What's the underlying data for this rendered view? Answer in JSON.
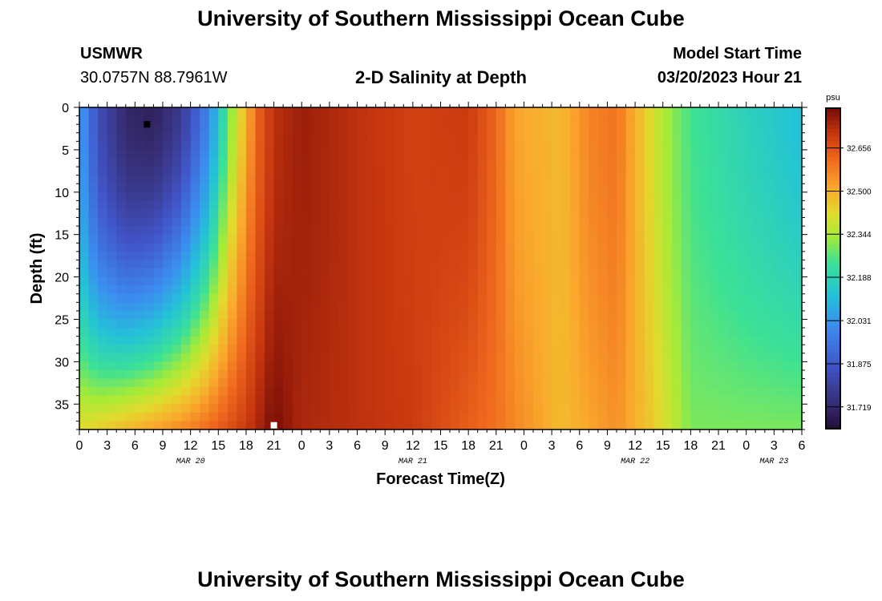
{
  "page": {
    "title": "University of Southern Mississippi Ocean Cube",
    "footer_title": "University of Southern Mississippi Ocean Cube",
    "station_id": "USMWR",
    "coordinates": "30.0757N  88.7961W",
    "subtitle": "2-D Salinity at Depth",
    "model_start_label": "Model Start Time",
    "model_start_value": "03/20/2023 Hour 21"
  },
  "chart_data": {
    "type": "heatmap",
    "title": "2-D Salinity at Depth",
    "xlabel": "Forecast Time(Z)",
    "ylabel": "Depth (ft)",
    "x_start_hour": 0,
    "x_end_hour": 78,
    "x_ticks": [
      "0",
      "3",
      "6",
      "9",
      "12",
      "15",
      "18",
      "21",
      "0",
      "3",
      "6",
      "9",
      "12",
      "15",
      "18",
      "21",
      "0",
      "3",
      "6",
      "9",
      "12",
      "15",
      "18",
      "21",
      "0",
      "3",
      "6"
    ],
    "date_labels": [
      {
        "label": "MAR 20",
        "hour": 12
      },
      {
        "label": "MAR 21",
        "hour": 36
      },
      {
        "label": "MAR 22",
        "hour": 60
      },
      {
        "label": "MAR 23",
        "hour": 75
      }
    ],
    "y_ticks": [
      0,
      5,
      10,
      15,
      20,
      25,
      30,
      35
    ],
    "ylim": [
      38,
      0
    ],
    "colorbar": {
      "unit": "psu",
      "ticks": [
        31.719,
        31.875,
        32.031,
        32.188,
        32.344,
        32.5,
        32.656
      ],
      "tick_labels": [
        "31.719",
        "31.875",
        "32.031",
        "32.188",
        "32.344",
        "32.500",
        "32.656"
      ],
      "min": 31.64,
      "max": 32.8
    },
    "surface_salinity_profile": [
      {
        "hour": 0,
        "value": 32.06
      },
      {
        "hour": 2,
        "value": 31.85
      },
      {
        "hour": 5,
        "value": 31.72
      },
      {
        "hour": 8,
        "value": 31.7
      },
      {
        "hour": 11,
        "value": 31.78
      },
      {
        "hour": 14,
        "value": 32.0
      },
      {
        "hour": 16.5,
        "value": 32.33
      },
      {
        "hour": 18,
        "value": 32.5
      },
      {
        "hour": 19.5,
        "value": 32.64
      },
      {
        "hour": 21,
        "value": 32.72
      },
      {
        "hour": 24,
        "value": 32.76
      },
      {
        "hour": 30,
        "value": 32.72
      },
      {
        "hour": 36,
        "value": 32.69
      },
      {
        "hour": 42,
        "value": 32.7
      },
      {
        "hour": 45,
        "value": 32.62
      },
      {
        "hour": 47,
        "value": 32.52
      },
      {
        "hour": 52,
        "value": 32.48
      },
      {
        "hour": 55,
        "value": 32.57
      },
      {
        "hour": 58,
        "value": 32.6
      },
      {
        "hour": 60,
        "value": 32.5
      },
      {
        "hour": 63,
        "value": 32.35
      },
      {
        "hour": 66,
        "value": 32.25
      },
      {
        "hour": 72,
        "value": 32.18
      },
      {
        "hour": 78,
        "value": 32.12
      }
    ],
    "bottom_salinity_profile": [
      {
        "hour": 0,
        "value": 32.42
      },
      {
        "hour": 6,
        "value": 32.5
      },
      {
        "hour": 12,
        "value": 32.58
      },
      {
        "hour": 18,
        "value": 32.7
      },
      {
        "hour": 21,
        "value": 32.8
      },
      {
        "hour": 24,
        "value": 32.74
      },
      {
        "hour": 36,
        "value": 32.7
      },
      {
        "hour": 45,
        "value": 32.6
      },
      {
        "hour": 52,
        "value": 32.48
      },
      {
        "hour": 58,
        "value": 32.55
      },
      {
        "hour": 62,
        "value": 32.45
      },
      {
        "hour": 66,
        "value": 32.3
      },
      {
        "hour": 72,
        "value": 32.3
      },
      {
        "hour": 78,
        "value": 32.3
      }
    ],
    "markers": [
      {
        "name": "min-marker",
        "hour": 7.3,
        "depth": 2,
        "color": "#000000"
      },
      {
        "name": "max-marker",
        "hour": 21,
        "depth": 37.5,
        "color": "#ffffff"
      }
    ]
  }
}
